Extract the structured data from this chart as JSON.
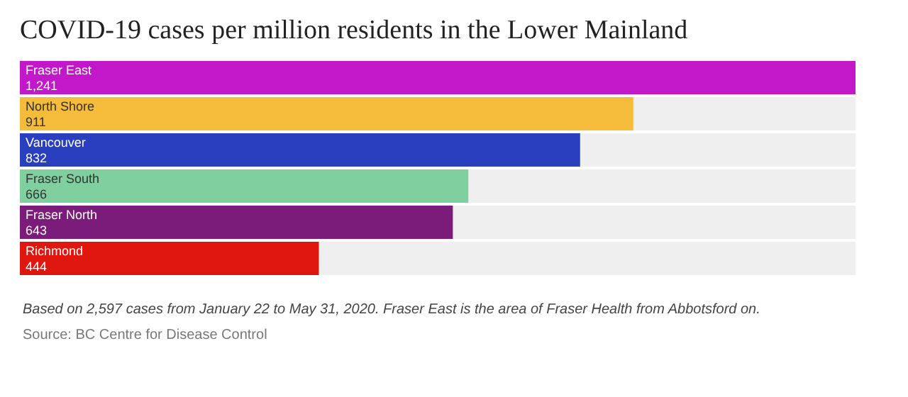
{
  "chart_data": {
    "type": "bar",
    "orientation": "horizontal",
    "title": "COVID-19 cases per million residents in the Lower Mainland",
    "categories": [
      "Fraser East",
      "North Shore",
      "Vancouver",
      "Fraser South",
      "Fraser North",
      "Richmond"
    ],
    "values": [
      1241,
      911,
      832,
      666,
      643,
      444
    ],
    "value_labels": [
      "1,241",
      "911",
      "832",
      "666",
      "643",
      "444"
    ],
    "colors": [
      "#c218c9",
      "#f5bc3c",
      "#2a3fbf",
      "#80cf9f",
      "#7b1b7a",
      "#e0170f"
    ],
    "annotations": [
      "Based on 2,597 cases from January 22 to May 31, 2020. Fraser East is the area of Fraser Health from Abbotsford on.",
      "Source: BC Centre for Disease Control"
    ]
  }
}
